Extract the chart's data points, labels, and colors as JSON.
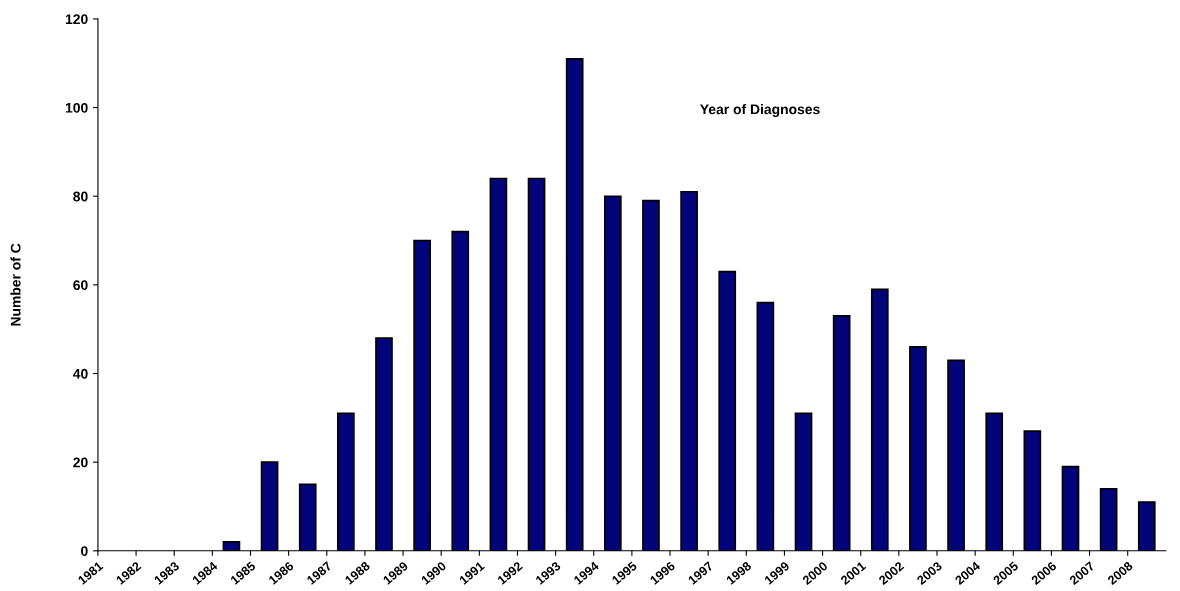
{
  "chart_data": {
    "type": "bar",
    "xlabel": "Year of Diagnoses",
    "ylabel": "Number of C",
    "categories": [
      "1981",
      "1982",
      "1983",
      "1984",
      "1985",
      "1986",
      "1987",
      "1988",
      "1989",
      "1990",
      "1991",
      "1992",
      "1993",
      "1994",
      "1995",
      "1996",
      "1997",
      "1998",
      "1999",
      "2000",
      "2001",
      "2002",
      "2003",
      "2004",
      "2005",
      "2006",
      "2007",
      "2008"
    ],
    "values": [
      0,
      0,
      0,
      2,
      20,
      15,
      31,
      48,
      70,
      72,
      84,
      84,
      111,
      80,
      79,
      81,
      63,
      56,
      31,
      53,
      59,
      46,
      43,
      31,
      27,
      19,
      14,
      11
    ],
    "color": "#04047a",
    "ylim": [
      0,
      120
    ],
    "yticks": [
      0,
      20,
      40,
      60,
      80,
      100,
      120
    ],
    "grid": false,
    "legend": false
  }
}
